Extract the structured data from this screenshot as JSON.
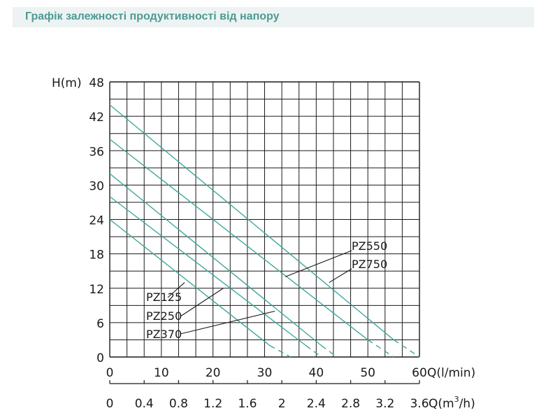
{
  "page": {
    "title": "Графік залежності продуктивності від напору"
  },
  "colors": {
    "title": "#4d9a92",
    "title_bg": "#edf3f3",
    "curve": "#3fa79d",
    "grid": "#1a1a1a"
  },
  "chart_data": {
    "type": "line",
    "ylabel": "H(m)",
    "xlabel": "Q(l/min)",
    "x2label_prefix": "Q(m",
    "x2label_sup": "3",
    "x2label_suffix": "/h)",
    "xlim": [
      0,
      60
    ],
    "ylim": [
      0,
      48
    ],
    "grid": true,
    "y_ticks": [
      "0",
      "6",
      "12",
      "18",
      "24",
      "30",
      "36",
      "42",
      "48"
    ],
    "x_ticks": [
      "0",
      "10",
      "20",
      "30",
      "40",
      "50",
      "60"
    ],
    "x2_ticks": [
      "0",
      "0.4",
      "0.8",
      "1.2",
      "1.6",
      "2",
      "2.4",
      "2.8",
      "3.2",
      "3.6"
    ],
    "series": [
      {
        "name": "PZ125",
        "x": [
          0,
          31,
          35
        ],
        "y": [
          24,
          2,
          0
        ]
      },
      {
        "name": "PZ250",
        "x": [
          0,
          38,
          41
        ],
        "y": [
          28,
          2,
          0
        ]
      },
      {
        "name": "PZ370",
        "x": [
          0,
          41,
          44
        ],
        "y": [
          32,
          2,
          0
        ]
      },
      {
        "name": "PZ550",
        "x": [
          0,
          50,
          55
        ],
        "y": [
          38,
          3,
          0
        ]
      },
      {
        "name": "PZ750",
        "x": [
          0,
          55,
          60
        ],
        "y": [
          44,
          3,
          0
        ]
      }
    ]
  }
}
